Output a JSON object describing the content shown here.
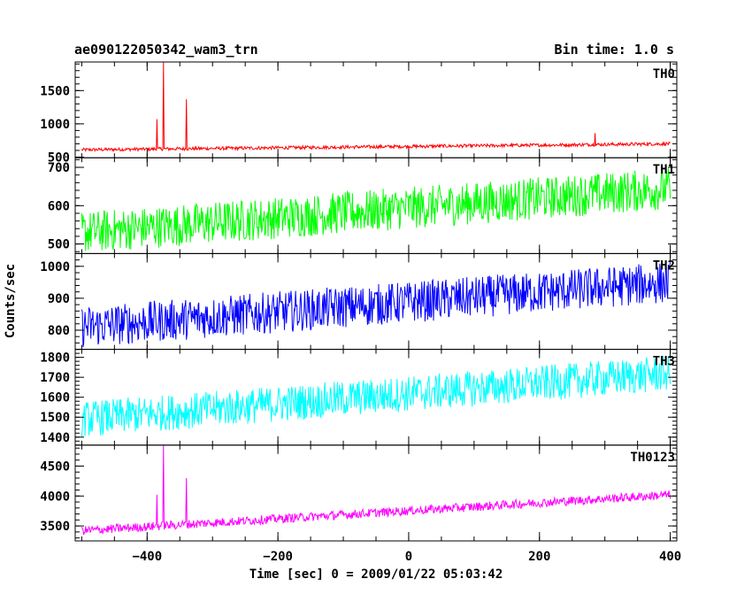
{
  "header": {
    "title": "ae090122050342_wam3_trn",
    "bin_time": "Bin time: 1.0 s"
  },
  "chart_data": {
    "type": "line",
    "xlabel": "Time [sec] 0 = 2009/01/22 05:03:42",
    "ylabel": "Counts/sec",
    "xlim": [
      -510,
      410
    ],
    "x_ticks": [
      -400,
      -200,
      0,
      200,
      400
    ],
    "x_tick_labels": [
      "−400",
      "−200",
      "0",
      "200",
      "400"
    ],
    "panels": [
      {
        "name": "TH0",
        "color": "#ff0000",
        "ylim": [
          490,
          1930
        ],
        "y_ticks": [
          500,
          1000,
          1500
        ],
        "y_tick_labels": [
          "500",
          "1000",
          "1500"
        ],
        "start": 610,
        "end": 700,
        "noise": 25,
        "spikes": [
          [
            -385,
            1070
          ],
          [
            -375,
            1930
          ],
          [
            -340,
            1370
          ],
          [
            285,
            860
          ]
        ]
      },
      {
        "name": "TH1",
        "color": "#00ff00",
        "ylim": [
          475,
          725
        ],
        "y_ticks": [
          500,
          600,
          700
        ],
        "y_tick_labels": [
          "500",
          "600",
          "700"
        ],
        "start": 530,
        "end": 645,
        "noise": 55,
        "spikes": []
      },
      {
        "name": "TH2",
        "color": "#0000ff",
        "ylim": [
          740,
          1040
        ],
        "y_ticks": [
          800,
          900,
          1000
        ],
        "y_tick_labels": [
          "800",
          "900",
          "1000"
        ],
        "start": 810,
        "end": 950,
        "noise": 65,
        "spikes": []
      },
      {
        "name": "TH3",
        "color": "#00ffff",
        "ylim": [
          1360,
          1840
        ],
        "y_ticks": [
          1400,
          1500,
          1600,
          1700,
          1800
        ],
        "y_tick_labels": [
          "1400",
          "1500",
          "1600",
          "1700",
          "1800"
        ],
        "start": 1490,
        "end": 1720,
        "noise": 90,
        "spikes": []
      },
      {
        "name": "TH0123",
        "color": "#ff00ff",
        "ylim": [
          3250,
          4850
        ],
        "y_ticks": [
          3500,
          4000,
          4500
        ],
        "y_tick_labels": [
          "3500",
          "4000",
          "4500"
        ],
        "start": 3420,
        "end": 4020,
        "noise": 75,
        "spikes": [
          [
            -385,
            4020
          ],
          [
            -375,
            4850
          ],
          [
            -340,
            4300
          ]
        ]
      }
    ]
  }
}
